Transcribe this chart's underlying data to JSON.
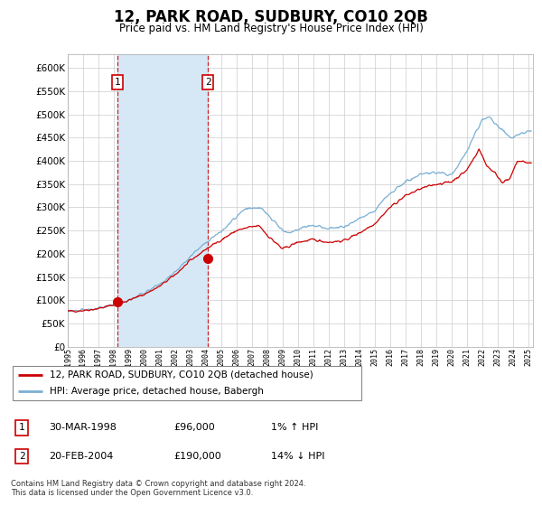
{
  "title": "12, PARK ROAD, SUDBURY, CO10 2QB",
  "subtitle": "Price paid vs. HM Land Registry's House Price Index (HPI)",
  "xlim_start": 1995.0,
  "xlim_end": 2025.3,
  "ylim_min": 0,
  "ylim_max": 630000,
  "yticks": [
    0,
    50000,
    100000,
    150000,
    200000,
    250000,
    300000,
    350000,
    400000,
    450000,
    500000,
    550000,
    600000
  ],
  "purchase1_date": 1998.24,
  "purchase1_price": 96000,
  "purchase1_label": "1",
  "purchase2_date": 2004.13,
  "purchase2_price": 190000,
  "purchase2_label": "2",
  "legend_line1": "12, PARK ROAD, SUDBURY, CO10 2QB (detached house)",
  "legend_line2": "HPI: Average price, detached house, Babergh",
  "table_row1_num": "1",
  "table_row1_date": "30-MAR-1998",
  "table_row1_price": "£96,000",
  "table_row1_hpi": "1% ↑ HPI",
  "table_row2_num": "2",
  "table_row2_date": "20-FEB-2004",
  "table_row2_price": "£190,000",
  "table_row2_hpi": "14% ↓ HPI",
  "footnote": "Contains HM Land Registry data © Crown copyright and database right 2024.\nThis data is licensed under the Open Government Licence v3.0.",
  "red_line_color": "#cc0000",
  "blue_line_color": "#7aafd4",
  "highlight_color": "#d6e8f5",
  "grid_color": "#cccccc",
  "hpi_anchors_t": [
    1995.0,
    1996.0,
    1997.0,
    1998.0,
    1999.0,
    2000.0,
    2001.0,
    2002.0,
    2003.0,
    2004.0,
    2005.0,
    2006.5,
    2007.5,
    2008.3,
    2009.0,
    2009.5,
    2010.5,
    2011.0,
    2012.0,
    2013.0,
    2014.0,
    2015.0,
    2016.0,
    2017.0,
    2018.0,
    2019.0,
    2020.0,
    2021.0,
    2021.5,
    2022.0,
    2022.5,
    2023.0,
    2023.5,
    2024.0,
    2024.5,
    2025.2
  ],
  "hpi_anchors_v": [
    76000,
    78000,
    82000,
    90000,
    100000,
    115000,
    135000,
    160000,
    195000,
    225000,
    248000,
    295000,
    300000,
    275000,
    250000,
    245000,
    260000,
    260000,
    255000,
    258000,
    275000,
    295000,
    330000,
    355000,
    370000,
    375000,
    370000,
    420000,
    455000,
    490000,
    495000,
    475000,
    460000,
    450000,
    460000,
    465000
  ],
  "prop_anchors_t": [
    1995.0,
    1996.0,
    1997.0,
    1998.0,
    1999.0,
    2000.0,
    2001.0,
    2002.0,
    2003.0,
    2004.0,
    2005.0,
    2006.0,
    2007.0,
    2007.5,
    2008.0,
    2008.5,
    2009.0,
    2010.0,
    2011.0,
    2012.0,
    2013.0,
    2014.0,
    2015.0,
    2016.0,
    2017.0,
    2018.0,
    2019.0,
    2020.0,
    2021.0,
    2021.8,
    2022.3,
    2022.8,
    2023.3,
    2023.8,
    2024.3,
    2025.2
  ],
  "prop_anchors_v": [
    76000,
    78000,
    82000,
    90000,
    100000,
    113000,
    130000,
    155000,
    185000,
    210000,
    230000,
    250000,
    258000,
    260000,
    240000,
    225000,
    210000,
    225000,
    230000,
    225000,
    228000,
    245000,
    265000,
    300000,
    325000,
    340000,
    350000,
    355000,
    380000,
    425000,
    390000,
    375000,
    355000,
    360000,
    400000,
    395000
  ]
}
